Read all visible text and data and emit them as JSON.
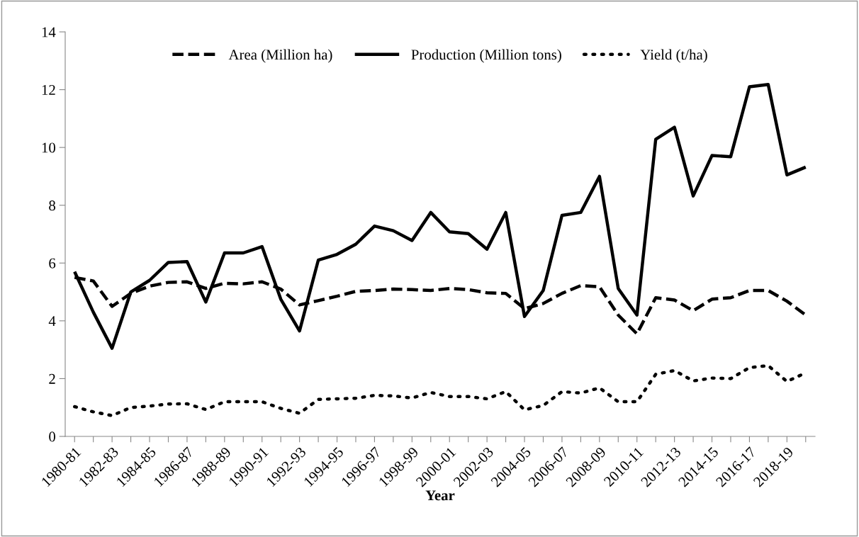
{
  "chart_data": {
    "type": "line",
    "xlabel": "Year",
    "categories": [
      "1980-81",
      null,
      "1982-83",
      null,
      "1984-85",
      null,
      "1986-87",
      null,
      "1988-89",
      null,
      "1990-91",
      null,
      "1992-93",
      null,
      "1994-95",
      null,
      "1996-97",
      null,
      "1998-99",
      null,
      "2000-01",
      null,
      "2002-03",
      null,
      "2004-05",
      null,
      "2006-07",
      null,
      "2008-09",
      null,
      "2010-11",
      null,
      "2012-13",
      null,
      "2014-15",
      null,
      "2016-17",
      null,
      "2018-19",
      null
    ],
    "series": [
      {
        "name": "Area (Million ha)",
        "color": "#000000",
        "line_style": "dashed",
        "values": [
          5.5,
          5.38,
          4.5,
          4.95,
          5.2,
          5.33,
          5.35,
          5.12,
          5.3,
          5.28,
          5.35,
          5.1,
          4.55,
          4.7,
          4.85,
          5.02,
          5.05,
          5.1,
          5.08,
          5.05,
          5.12,
          5.08,
          4.97,
          4.95,
          4.42,
          4.6,
          4.95,
          5.22,
          5.18,
          4.2,
          3.55,
          4.8,
          4.72,
          4.35,
          4.75,
          4.8,
          5.05,
          5.05,
          4.68,
          4.2
        ]
      },
      {
        "name": "Production (Million tons)",
        "color": "#000000",
        "line_style": "solid",
        "values": [
          5.7,
          4.3,
          3.05,
          5.0,
          5.4,
          6.02,
          6.05,
          4.65,
          6.35,
          6.35,
          6.57,
          4.75,
          3.65,
          6.1,
          6.3,
          6.65,
          7.28,
          7.12,
          6.78,
          7.75,
          7.08,
          7.02,
          6.48,
          7.75,
          4.15,
          5.05,
          7.65,
          7.75,
          9.0,
          5.12,
          4.2,
          10.28,
          10.7,
          8.32,
          9.72,
          9.68,
          12.1,
          12.18,
          9.05,
          9.32
        ]
      },
      {
        "name": "Yield (t/ha)",
        "color": "#000000",
        "line_style": "dotted",
        "values": [
          1.03,
          0.85,
          0.72,
          1.0,
          1.05,
          1.12,
          1.13,
          0.93,
          1.2,
          1.2,
          1.2,
          0.97,
          0.8,
          1.28,
          1.3,
          1.32,
          1.42,
          1.4,
          1.33,
          1.52,
          1.38,
          1.38,
          1.3,
          1.55,
          0.92,
          1.07,
          1.55,
          1.5,
          1.68,
          1.2,
          1.2,
          2.15,
          2.28,
          1.92,
          2.02,
          2.0,
          2.38,
          2.45,
          1.9,
          2.2
        ]
      }
    ],
    "ylim": [
      0,
      14
    ],
    "yticks": [
      0,
      2,
      4,
      6,
      8,
      10,
      12,
      14
    ],
    "grid": false,
    "legend": "top"
  }
}
